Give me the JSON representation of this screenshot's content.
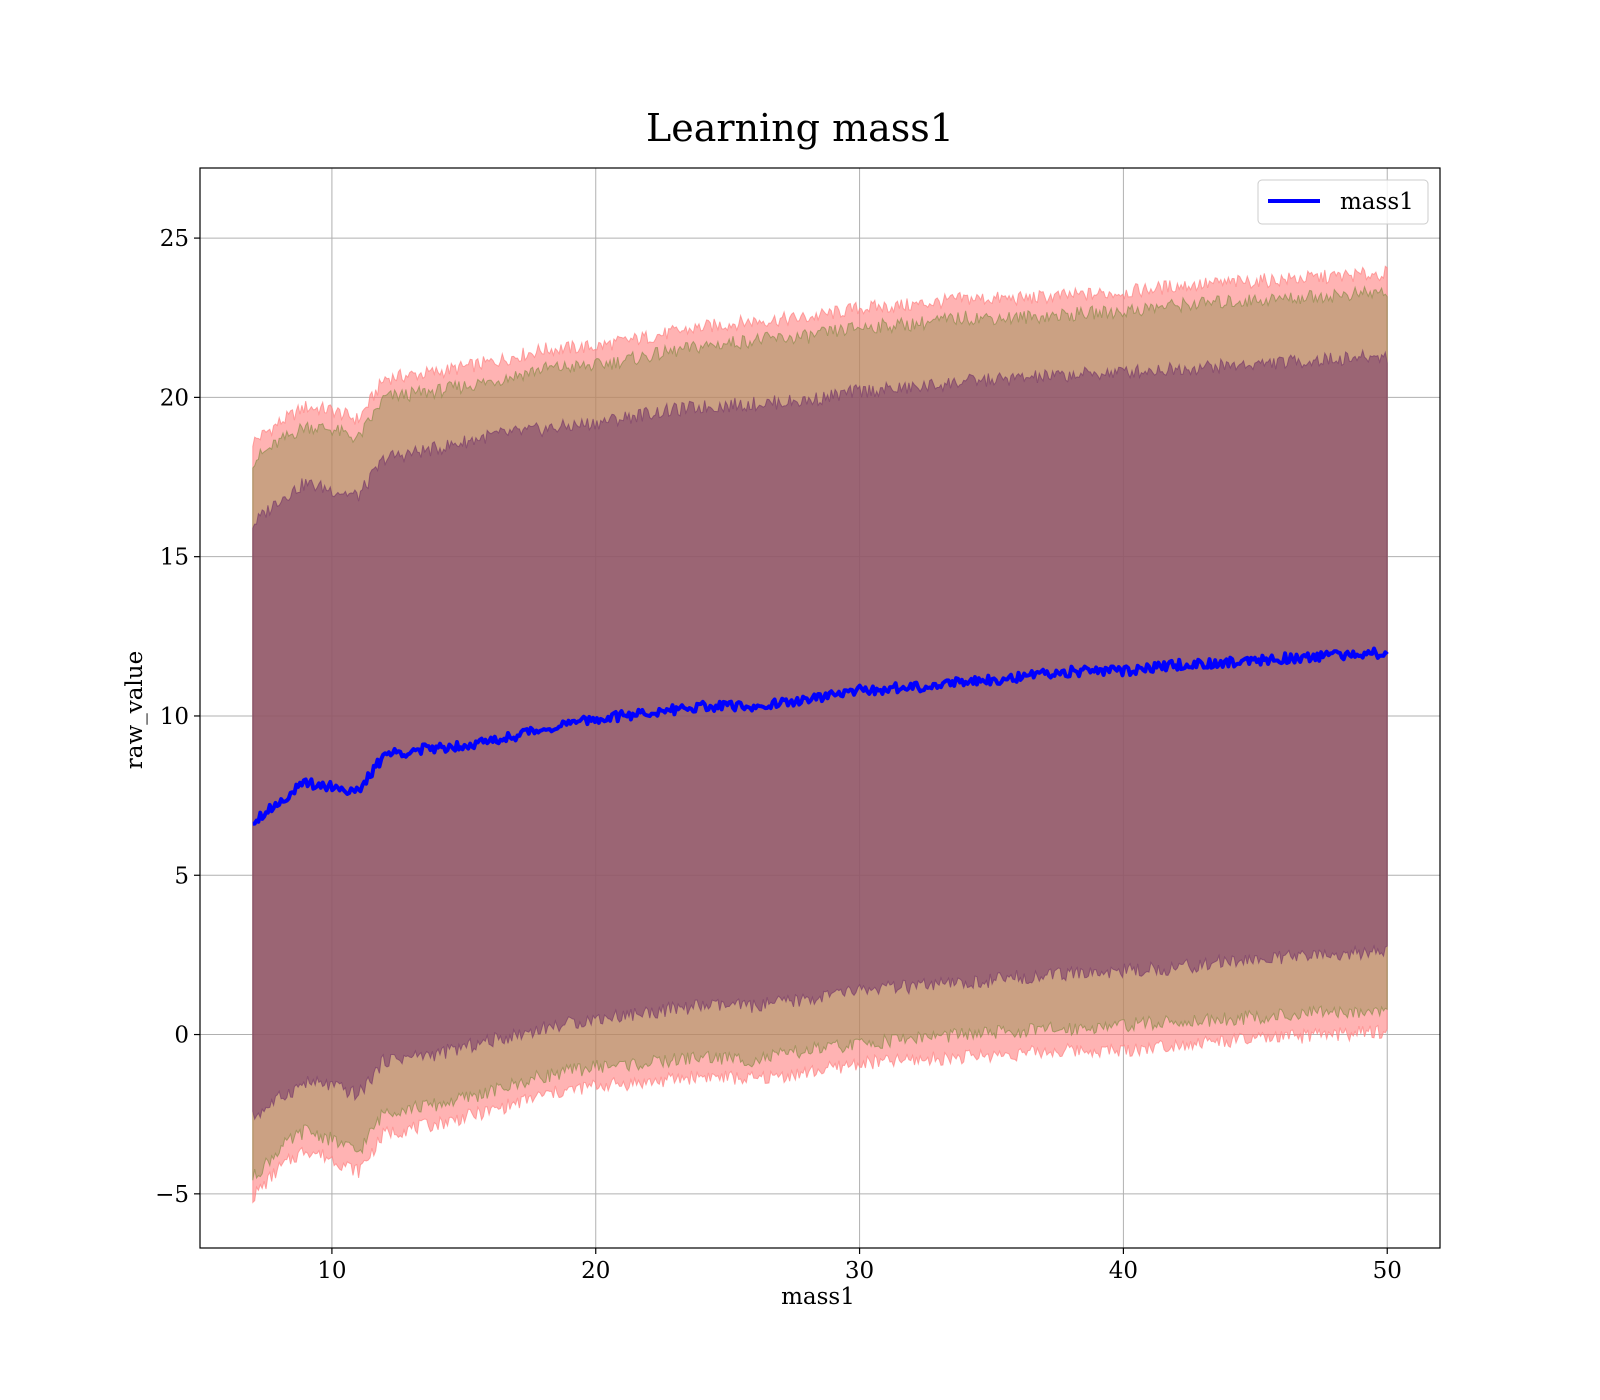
{
  "chart_data": {
    "type": "area",
    "title": "Learning mass1",
    "xlabel": "mass1",
    "ylabel": "raw_value",
    "xlim": [
      5,
      52
    ],
    "ylim": [
      -6.7,
      27.2
    ],
    "xticks": [
      10,
      20,
      30,
      40,
      50
    ],
    "yticks": [
      -5,
      0,
      5,
      10,
      15,
      20,
      25
    ],
    "ytick_labels": [
      "−5",
      "0",
      "5",
      "10",
      "15",
      "20",
      "25"
    ],
    "grid": true,
    "legend": {
      "position": "top-right",
      "entries": [
        "mass1"
      ]
    },
    "x": [
      7,
      8,
      9,
      10,
      11,
      12,
      14,
      16,
      18,
      20,
      22,
      24,
      26,
      28,
      30,
      32,
      34,
      36,
      38,
      40,
      42,
      44,
      46,
      48,
      50
    ],
    "series": [
      {
        "name": "mass1",
        "kind": "line",
        "color": "#0000ff",
        "values": [
          6.7,
          7.3,
          7.9,
          7.8,
          7.6,
          8.8,
          9.0,
          9.2,
          9.6,
          9.9,
          10.1,
          10.3,
          10.3,
          10.5,
          10.8,
          10.9,
          11.1,
          11.2,
          11.4,
          11.4,
          11.6,
          11.7,
          11.8,
          11.9,
          12.0
        ]
      },
      {
        "kind": "band",
        "color": "#ff8080",
        "opacity": 0.6,
        "lower": [
          -5.1,
          -4.2,
          -3.6,
          -3.9,
          -4.3,
          -3.1,
          -2.8,
          -2.4,
          -1.9,
          -1.6,
          -1.5,
          -1.3,
          -1.4,
          -1.2,
          -0.9,
          -0.8,
          -0.7,
          -0.6,
          -0.5,
          -0.5,
          -0.3,
          -0.2,
          -0.1,
          0.0,
          0.1
        ],
        "upper": [
          18.6,
          19.2,
          19.7,
          19.6,
          19.3,
          20.6,
          20.8,
          21.1,
          21.5,
          21.6,
          21.9,
          22.2,
          22.4,
          22.5,
          22.8,
          22.9,
          23.1,
          23.1,
          23.2,
          23.3,
          23.5,
          23.6,
          23.7,
          23.8,
          23.9
        ]
      },
      {
        "kind": "band",
        "color": "#8b8b4a",
        "opacity": 0.45,
        "lower": [
          -4.5,
          -3.6,
          -3.0,
          -3.3,
          -3.7,
          -2.4,
          -2.2,
          -1.8,
          -1.3,
          -1.0,
          -0.9,
          -0.7,
          -0.8,
          -0.5,
          -0.3,
          -0.1,
          0.0,
          0.1,
          0.2,
          0.3,
          0.4,
          0.5,
          0.6,
          0.7,
          0.8
        ],
        "upper": [
          18.0,
          18.6,
          19.1,
          19.0,
          18.7,
          20.0,
          20.2,
          20.5,
          20.9,
          21.0,
          21.3,
          21.6,
          21.8,
          21.9,
          22.2,
          22.3,
          22.5,
          22.5,
          22.6,
          22.7,
          22.9,
          23.0,
          23.1,
          23.2,
          23.3
        ]
      },
      {
        "kind": "band",
        "color": "#7b3d6b",
        "opacity": 0.6,
        "lower": [
          -2.6,
          -2.0,
          -1.5,
          -1.6,
          -1.9,
          -0.8,
          -0.6,
          -0.2,
          0.2,
          0.5,
          0.7,
          0.9,
          0.9,
          1.1,
          1.4,
          1.5,
          1.6,
          1.8,
          1.9,
          2.0,
          2.1,
          2.3,
          2.4,
          2.5,
          2.6
        ],
        "upper": [
          16.0,
          16.8,
          17.3,
          17.1,
          16.9,
          18.1,
          18.4,
          18.8,
          19.0,
          19.2,
          19.5,
          19.7,
          19.8,
          19.9,
          20.2,
          20.3,
          20.5,
          20.6,
          20.7,
          20.8,
          20.9,
          21.0,
          21.1,
          21.2,
          21.3
        ]
      }
    ]
  }
}
